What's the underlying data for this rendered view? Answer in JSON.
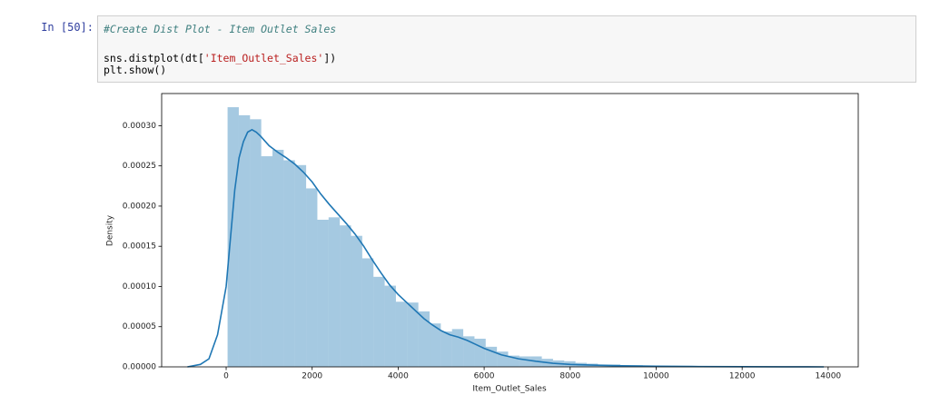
{
  "cell": {
    "prompt": "In [50]:",
    "lines": [
      [
        {
          "text": "#Create Dist Plot - Item Outlet Sales",
          "style": "comment"
        }
      ],
      [
        {
          "text": "sns.distplot(dt[",
          "style": "plain"
        },
        {
          "text": "'Item_Outlet_Sales'",
          "style": "string"
        },
        {
          "text": "])",
          "style": "plain"
        }
      ],
      [
        {
          "text": "plt.show()",
          "style": "plain"
        }
      ]
    ]
  },
  "chart_data": {
    "type": "histogram",
    "xlabel": "Item_Outlet_Sales",
    "ylabel": "Density",
    "color": "#1f77b4",
    "bins": [
      33,
      294,
      555,
      816,
      1077,
      1338,
      1599,
      1860,
      2121,
      2382,
      2643,
      2904,
      3165,
      3426,
      3687,
      3948,
      4209,
      4470,
      4731,
      4992,
      5253,
      5514,
      5775,
      6036,
      6297,
      6558,
      6819,
      7080,
      7341,
      7602,
      7863,
      8124,
      8385,
      8646,
      8907,
      9168,
      9429,
      9690,
      9951,
      10212,
      10473,
      10734,
      10995,
      11256,
      11517,
      11778,
      12039,
      12300,
      12561,
      12822,
      13083
    ],
    "values": [
      0.000323,
      0.000313,
      0.000308,
      0.000262,
      0.00027,
      0.000257,
      0.000251,
      0.000222,
      0.000183,
      0.000186,
      0.000176,
      0.000163,
      0.000135,
      0.000112,
      0.000101,
      8.1e-05,
      8e-05,
      6.9e-05,
      5.4e-05,
      4.4e-05,
      4.7e-05,
      3.8e-05,
      3.5e-05,
      2.5e-05,
      1.9e-05,
      1.4e-05,
      1.3e-05,
      1.3e-05,
      1e-05,
      8e-06,
      7e-06,
      5e-06,
      4e-06,
      3e-06,
      3e-06,
      2e-06,
      2e-06,
      1e-06,
      1e-06,
      1e-06,
      1e-06,
      1e-06,
      5e-07,
      5e-07,
      5e-07,
      3e-07,
      3e-07,
      3e-07,
      2e-07,
      2e-07
    ],
    "kde": {
      "color": "#1f77b4",
      "x": [
        -900,
        -600,
        -400,
        -200,
        0,
        100,
        200,
        300,
        400,
        500,
        600,
        700,
        800,
        1000,
        1200,
        1400,
        1600,
        1800,
        2000,
        2200,
        2400,
        2600,
        2800,
        3000,
        3200,
        3400,
        3600,
        3800,
        4000,
        4200,
        4400,
        4600,
        4800,
        5000,
        5200,
        5400,
        5600,
        5800,
        6000,
        6400,
        6800,
        7200,
        7600,
        8000,
        9000,
        10000,
        11000,
        12000,
        13000,
        13900
      ],
      "values": [
        0,
        3e-06,
        1e-05,
        4e-05,
        0.0001,
        0.00016,
        0.00022,
        0.00026,
        0.00028,
        0.000292,
        0.000295,
        0.000292,
        0.000287,
        0.000275,
        0.000267,
        0.00026,
        0.000252,
        0.000242,
        0.00023,
        0.000215,
        0.000202,
        0.00019,
        0.000178,
        0.000165,
        0.00015,
        0.000133,
        0.000117,
        0.000102,
        9e-05,
        8e-05,
        7e-05,
        6e-05,
        5.2e-05,
        4.5e-05,
        4e-05,
        3.7e-05,
        3.3e-05,
        2.8e-05,
        2.3e-05,
        1.5e-05,
        1e-05,
        7e-06,
        4.5e-06,
        3e-06,
        1.5e-06,
        8e-07,
        4e-07,
        2e-07,
        1e-07,
        0
      ]
    },
    "xlim": [
      -1500,
      14700
    ],
    "xticks": [
      0,
      2000,
      4000,
      6000,
      8000,
      10000,
      12000,
      14000
    ],
    "ylim": [
      0,
      0.00034
    ],
    "yticks": [
      {
        "value": 0,
        "label": "0.00000"
      },
      {
        "value": 5e-05,
        "label": "0.00005"
      },
      {
        "value": 0.0001,
        "label": "0.00010"
      },
      {
        "value": 0.00015,
        "label": "0.00015"
      },
      {
        "value": 0.0002,
        "label": "0.00020"
      },
      {
        "value": 0.00025,
        "label": "0.00025"
      },
      {
        "value": 0.0003,
        "label": "0.00030"
      }
    ]
  }
}
